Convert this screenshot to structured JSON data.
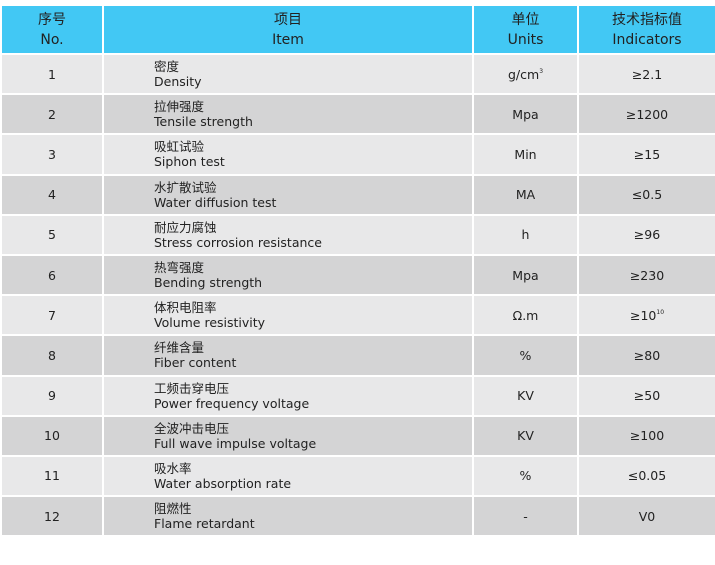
{
  "header": {
    "no_cn": "序号",
    "no_en": "No.",
    "item_cn": "项目",
    "item_en": "Item",
    "units_cn": "单位",
    "units_en": "Units",
    "ind_cn": "技术指标值",
    "ind_en": "Indicators"
  },
  "colors": {
    "header": "#42c8f4",
    "row_light": "#e8e8e9",
    "row_dark": "#d4d4d5"
  },
  "rows": [
    {
      "no": "1",
      "cn": "密度",
      "en": "Density",
      "unit": "g/cm",
      "unit_sup": "3",
      "value": "≥2.1",
      "value_sup": ""
    },
    {
      "no": "2",
      "cn": "拉伸强度",
      "en": "Tensile strength",
      "unit": "Mpa",
      "unit_sup": "",
      "value": "≥1200",
      "value_sup": ""
    },
    {
      "no": "3",
      "cn": "吸虹试验",
      "en": "Siphon test",
      "unit": "Min",
      "unit_sup": "",
      "value": "≥15",
      "value_sup": ""
    },
    {
      "no": "4",
      "cn": "水扩散试验",
      "en": "Water diffusion test",
      "unit": "MA",
      "unit_sup": "",
      "value": "≤0.5",
      "value_sup": ""
    },
    {
      "no": "5",
      "cn": "耐应力腐蚀",
      "en": "Stress corrosion resistance",
      "unit": "h",
      "unit_sup": "",
      "value": "≥96",
      "value_sup": ""
    },
    {
      "no": "6",
      "cn": "热弯强度",
      "en": "Bending strength",
      "unit": "Mpa",
      "unit_sup": "",
      "value": "≥230",
      "value_sup": ""
    },
    {
      "no": "7",
      "cn": "体积电阻率",
      "en": "Volume resistivity",
      "unit": "Ω.m",
      "unit_sup": "",
      "value": "≥10",
      "value_sup": "10"
    },
    {
      "no": "8",
      "cn": "纤维含量",
      "en": "Fiber content",
      "unit": "%",
      "unit_sup": "",
      "value": "≥80",
      "value_sup": ""
    },
    {
      "no": "9",
      "cn": "工频击穿电压",
      "en": "Power frequency voltage",
      "unit": "KV",
      "unit_sup": "",
      "value": "≥50",
      "value_sup": ""
    },
    {
      "no": "10",
      "cn": "全波冲击电压",
      "en": "Full wave impulse voltage",
      "unit": "KV",
      "unit_sup": "",
      "value": "≥100",
      "value_sup": ""
    },
    {
      "no": "11",
      "cn": "吸水率",
      "en": "Water absorption rate",
      "unit": "%",
      "unit_sup": "",
      "value": "≤0.05",
      "value_sup": ""
    },
    {
      "no": "12",
      "cn": "阻燃性",
      "en": "Flame retardant",
      "unit": "-",
      "unit_sup": "",
      "value": "V0",
      "value_sup": ""
    }
  ]
}
